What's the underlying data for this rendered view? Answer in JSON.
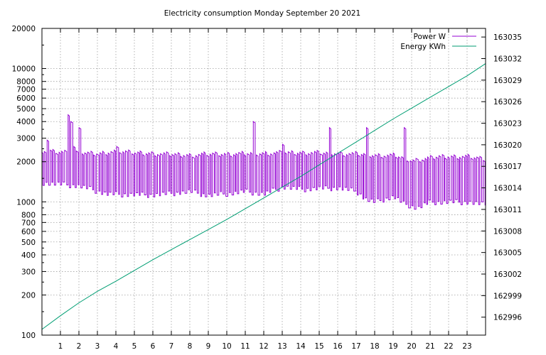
{
  "chart_data": {
    "type": "line",
    "title": "Electricity consumption Monday September 20 2021",
    "x": {
      "range": [
        0,
        24
      ],
      "ticks": [
        1,
        2,
        3,
        4,
        5,
        6,
        7,
        8,
        9,
        10,
        11,
        12,
        13,
        14,
        15,
        16,
        17,
        18,
        19,
        20,
        21,
        22,
        23
      ]
    },
    "y_left": {
      "scale": "log",
      "range": [
        100,
        20000
      ],
      "ticks": [
        100,
        200,
        300,
        400,
        500,
        600,
        700,
        800,
        1000,
        2000,
        3000,
        4000,
        5000,
        6000,
        7000,
        8000,
        10000,
        20000
      ],
      "tick_labels": [
        "100",
        "200",
        "300",
        "400",
        "500",
        "600",
        "700",
        "800",
        "1000",
        "2000",
        "3000",
        "4000",
        "5000",
        "6000",
        "7000",
        "8000",
        "10000",
        "20000"
      ]
    },
    "y_right": {
      "scale": "linear",
      "range": [
        162993.5,
        163036.2
      ],
      "ticks": [
        162996,
        162999,
        163002,
        163005,
        163008,
        163011,
        163014,
        163017,
        163020,
        163023,
        163026,
        163029,
        163032,
        163035
      ]
    },
    "grid": true,
    "legend_position": "top-right",
    "series": [
      {
        "name": "Power W",
        "axis": "left",
        "color": "#9400d3",
        "style": "square-wave",
        "base_levels": [
          [
            0,
            1400
          ],
          [
            2,
            1320
          ],
          [
            3.5,
            1150
          ],
          [
            6,
            1130
          ],
          [
            8,
            1200
          ],
          [
            9,
            1120
          ],
          [
            10,
            1160
          ],
          [
            11,
            1200
          ],
          [
            12,
            1150
          ],
          [
            13,
            1300
          ],
          [
            14,
            1250
          ],
          [
            16,
            1280
          ],
          [
            17,
            1200
          ],
          [
            17.5,
            1050
          ],
          [
            18,
            1000
          ],
          [
            19,
            1100
          ],
          [
            19.5,
            980
          ],
          [
            20.3,
            900
          ],
          [
            21,
            1000
          ],
          [
            23,
            1000
          ],
          [
            24,
            950
          ]
        ],
        "high_levels": [
          [
            0,
            2450
          ],
          [
            0.7,
            2380
          ],
          [
            2,
            2350
          ],
          [
            3,
            2300
          ],
          [
            4,
            2400
          ],
          [
            5,
            2350
          ],
          [
            8,
            2250
          ],
          [
            9,
            2300
          ],
          [
            10,
            2300
          ],
          [
            12,
            2330
          ],
          [
            13,
            2350
          ],
          [
            15,
            2350
          ],
          [
            17,
            2300
          ],
          [
            18,
            2250
          ],
          [
            19,
            2250
          ],
          [
            20,
            2050
          ],
          [
            21.5,
            2200
          ],
          [
            23,
            2200
          ],
          [
            24,
            2100
          ]
        ],
        "spikes": [
          [
            0.3,
            2900
          ],
          [
            1.5,
            4500
          ],
          [
            1.6,
            4000
          ],
          [
            1.7,
            4000
          ],
          [
            1.8,
            2600
          ],
          [
            2.1,
            3600
          ],
          [
            4.2,
            2600
          ],
          [
            11.5,
            4000
          ],
          [
            13.1,
            2700
          ],
          [
            15.6,
            3600
          ],
          [
            17.7,
            3600
          ],
          [
            19.6,
            3600
          ]
        ],
        "period_hours": 0.16
      },
      {
        "name": "Energy KWh",
        "axis": "right",
        "color": "#009e73",
        "points": [
          [
            0,
            162994.3
          ],
          [
            1,
            162996.2
          ],
          [
            2,
            162998.0
          ],
          [
            3,
            162999.6
          ],
          [
            4,
            163001.0
          ],
          [
            5,
            163002.5
          ],
          [
            6,
            163004.0
          ],
          [
            7,
            163005.4
          ],
          [
            8,
            163006.8
          ],
          [
            9,
            163008.2
          ],
          [
            10,
            163009.6
          ],
          [
            11,
            163011.1
          ],
          [
            12,
            163012.6
          ],
          [
            13,
            163014.1
          ],
          [
            14,
            163015.6
          ],
          [
            15,
            163017.2
          ],
          [
            16,
            163018.8
          ],
          [
            17,
            163020.4
          ],
          [
            18,
            163022.0
          ],
          [
            19,
            163023.6
          ],
          [
            20,
            163025.1
          ],
          [
            21,
            163026.6
          ],
          [
            22,
            163028.1
          ],
          [
            23,
            163029.6
          ],
          [
            24,
            163031.3
          ]
        ]
      }
    ]
  }
}
